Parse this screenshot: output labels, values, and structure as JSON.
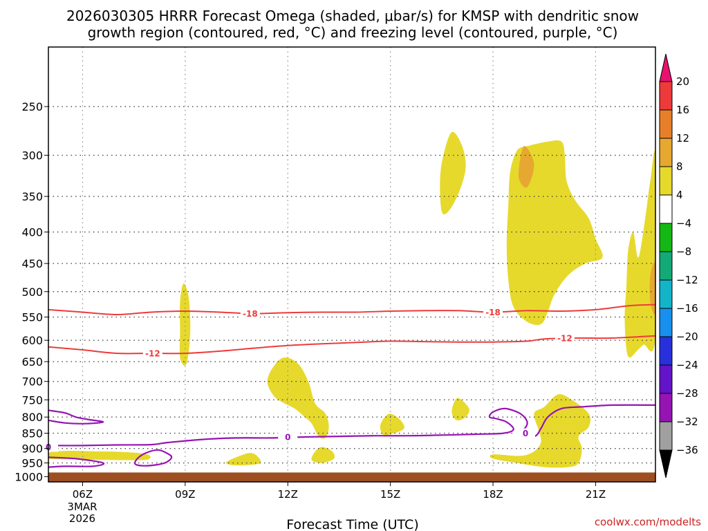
{
  "chart_data": {
    "type": "heatmap",
    "title_line1": "2026030305 HRRR Forecast Omega (shaded, μbar/s) for KMSP with dendritic snow",
    "title_line2": "growth region (contoured, red, °C) and freezing level (contoured, purple, °C)",
    "xlabel": "Forecast Time (UTC)",
    "ylabel": "",
    "x_ticks": [
      "06Z",
      "09Z",
      "12Z",
      "15Z",
      "18Z",
      "21Z"
    ],
    "x_date_label": [
      "3MAR",
      "2026"
    ],
    "xlim": [
      5,
      22.75
    ],
    "y_ticks": [
      250,
      300,
      350,
      400,
      450,
      500,
      550,
      600,
      650,
      700,
      750,
      800,
      850,
      900,
      950,
      1000
    ],
    "ylim": [
      200,
      1020
    ],
    "y_scale": "log",
    "y_inverted": true,
    "grid": true,
    "omega_regions": [
      {
        "level": "4",
        "points": [
          [
            16.5,
            370
          ],
          [
            16.45,
            330
          ],
          [
            16.55,
            300
          ],
          [
            16.8,
            275
          ],
          [
            17.1,
            290
          ],
          [
            17.2,
            315
          ],
          [
            17.0,
            345
          ],
          [
            16.7,
            370
          ]
        ]
      },
      {
        "level": "4",
        "points": [
          [
            19.0,
            290
          ],
          [
            19.6,
            285
          ],
          [
            20.0,
            285
          ],
          [
            20.1,
            300
          ],
          [
            20.15,
            330
          ],
          [
            20.4,
            355
          ],
          [
            20.8,
            380
          ],
          [
            21.0,
            410
          ],
          [
            21.2,
            440
          ],
          [
            20.7,
            450
          ],
          [
            20.2,
            470
          ],
          [
            19.8,
            505
          ],
          [
            19.6,
            540
          ],
          [
            19.4,
            565
          ],
          [
            19.0,
            560
          ],
          [
            18.6,
            530
          ],
          [
            18.45,
            480
          ],
          [
            18.4,
            420
          ],
          [
            18.45,
            360
          ],
          [
            18.5,
            320
          ],
          [
            18.7,
            295
          ]
        ]
      },
      {
        "level": "4",
        "points": [
          [
            21.85,
            550
          ],
          [
            21.9,
            490
          ],
          [
            21.95,
            430
          ],
          [
            22.1,
            400
          ],
          [
            22.25,
            440
          ],
          [
            22.45,
            380
          ],
          [
            22.6,
            330
          ],
          [
            22.75,
            305
          ],
          [
            22.75,
            590
          ],
          [
            22.4,
            610
          ],
          [
            22.2,
            625
          ],
          [
            22.0,
            640
          ],
          [
            21.9,
            620
          ]
        ]
      },
      {
        "level": "4",
        "points": [
          [
            8.85,
            640
          ],
          [
            8.85,
            580
          ],
          [
            8.85,
            520
          ],
          [
            8.95,
            485
          ],
          [
            9.1,
            510
          ],
          [
            9.15,
            570
          ],
          [
            9.1,
            630
          ],
          [
            9.0,
            660
          ]
        ]
      },
      {
        "level": "4",
        "points": [
          [
            11.4,
            700
          ],
          [
            11.6,
            660
          ],
          [
            11.9,
            640
          ],
          [
            12.3,
            655
          ],
          [
            12.6,
            700
          ],
          [
            12.8,
            760
          ],
          [
            13.1,
            790
          ],
          [
            13.2,
            830
          ],
          [
            13.1,
            865
          ],
          [
            12.9,
            860
          ],
          [
            12.7,
            820
          ],
          [
            12.5,
            800
          ],
          [
            12.2,
            775
          ],
          [
            11.9,
            760
          ],
          [
            11.6,
            740
          ]
        ]
      },
      {
        "level": "4",
        "points": [
          [
            14.7,
            830
          ],
          [
            14.8,
            805
          ],
          [
            15.0,
            790
          ],
          [
            15.3,
            810
          ],
          [
            15.4,
            835
          ],
          [
            15.1,
            850
          ],
          [
            14.8,
            855
          ]
        ]
      },
      {
        "level": "4",
        "points": [
          [
            16.8,
            790
          ],
          [
            16.85,
            760
          ],
          [
            17.0,
            745
          ],
          [
            17.3,
            775
          ],
          [
            17.2,
            800
          ],
          [
            16.95,
            810
          ]
        ]
      },
      {
        "level": "4",
        "points": [
          [
            19.2,
            790
          ],
          [
            19.5,
            770
          ],
          [
            19.9,
            735
          ],
          [
            20.3,
            750
          ],
          [
            20.8,
            790
          ],
          [
            20.8,
            830
          ],
          [
            20.5,
            860
          ],
          [
            20.6,
            900
          ],
          [
            20.5,
            950
          ],
          [
            20.2,
            965
          ],
          [
            19.5,
            965
          ],
          [
            18.7,
            950
          ],
          [
            18.0,
            935
          ],
          [
            18.0,
            920
          ],
          [
            18.8,
            925
          ],
          [
            19.2,
            910
          ],
          [
            19.4,
            880
          ],
          [
            19.35,
            845
          ]
        ]
      },
      {
        "level": "4",
        "points": [
          [
            5.0,
            915
          ],
          [
            5.5,
            908
          ],
          [
            6.5,
            910
          ],
          [
            7.2,
            912
          ],
          [
            7.9,
            920
          ],
          [
            7.9,
            938
          ],
          [
            7.2,
            940
          ],
          [
            6.0,
            938
          ],
          [
            5.0,
            935
          ]
        ]
      },
      {
        "level": "4",
        "points": [
          [
            10.2,
            948
          ],
          [
            10.6,
            925
          ],
          [
            10.9,
            915
          ],
          [
            11.1,
            925
          ],
          [
            11.2,
            950
          ],
          [
            10.8,
            958
          ],
          [
            10.4,
            958
          ]
        ]
      },
      {
        "level": "4",
        "points": [
          [
            12.7,
            940
          ],
          [
            12.8,
            910
          ],
          [
            13.0,
            895
          ],
          [
            13.3,
            910
          ],
          [
            13.35,
            935
          ],
          [
            13.0,
            950
          ]
        ]
      },
      {
        "level": "8",
        "points": [
          [
            18.75,
            325
          ],
          [
            18.9,
            290
          ],
          [
            19.2,
            310
          ],
          [
            19.0,
            338
          ]
        ]
      },
      {
        "level": "8",
        "points": [
          [
            22.6,
            470
          ],
          [
            22.75,
            450
          ],
          [
            22.75,
            540
          ],
          [
            22.6,
            520
          ]
        ]
      }
    ],
    "ground_level": 1000,
    "contours_dendritic": [
      {
        "label": "-18",
        "label_at": [
          10.9,
          543
        ],
        "points": [
          [
            5,
            535
          ],
          [
            6,
            540
          ],
          [
            7,
            545
          ],
          [
            8,
            540
          ],
          [
            9,
            538
          ],
          [
            10,
            540
          ],
          [
            11,
            543
          ],
          [
            12,
            541
          ],
          [
            13,
            540
          ],
          [
            14,
            540
          ],
          [
            15,
            538
          ],
          [
            16,
            537
          ],
          [
            17,
            537
          ],
          [
            18,
            540
          ],
          [
            19,
            537
          ],
          [
            20,
            538
          ],
          [
            21,
            535
          ],
          [
            22,
            527
          ],
          [
            22.75,
            525
          ]
        ]
      },
      {
        "label": "-12",
        "label_at": [
          8.05,
          630
        ],
        "label2": "-12",
        "label2_at": [
          20.1,
          595
        ],
        "points": [
          [
            5,
            615
          ],
          [
            6,
            622
          ],
          [
            7,
            630
          ],
          [
            8,
            630
          ],
          [
            9,
            630
          ],
          [
            10,
            625
          ],
          [
            11,
            618
          ],
          [
            12,
            612
          ],
          [
            13,
            608
          ],
          [
            14,
            605
          ],
          [
            15,
            602
          ],
          [
            16,
            603
          ],
          [
            17,
            604
          ],
          [
            18,
            604
          ],
          [
            19,
            602
          ],
          [
            19.5,
            597
          ],
          [
            20.5,
            595
          ],
          [
            21.5,
            595
          ],
          [
            22.75,
            590
          ]
        ]
      }
    ],
    "contours_freezing": [
      {
        "label": "0",
        "label_at": [
          5.0,
          895
        ],
        "points": [
          [
            5,
            890
          ],
          [
            6,
            890
          ],
          [
            7,
            888
          ],
          [
            8,
            887
          ],
          [
            8.5,
            880
          ],
          [
            9.5,
            870
          ],
          [
            10.5,
            865
          ],
          [
            11.5,
            865
          ],
          [
            12.5,
            862
          ],
          [
            13.5,
            860
          ],
          [
            14.5,
            858
          ],
          [
            15.5,
            858
          ],
          [
            16.5,
            856
          ],
          [
            17.5,
            853
          ],
          [
            18.3,
            850
          ],
          [
            18.6,
            838
          ],
          [
            18.4,
            815
          ],
          [
            18.1,
            805
          ],
          [
            17.9,
            800
          ],
          [
            18.0,
            785
          ],
          [
            18.35,
            775
          ],
          [
            18.8,
            790
          ],
          [
            19.0,
            815
          ],
          [
            18.9,
            838
          ],
          [
            18.7,
            848
          ],
          [
            19.2,
            860
          ],
          [
            19.4,
            835
          ],
          [
            19.6,
            800
          ],
          [
            20.0,
            775
          ],
          [
            20.6,
            770
          ],
          [
            21.5,
            765
          ],
          [
            22.75,
            765
          ]
        ]
      },
      {
        "label": "0",
        "label_at": [
          12.0,
          862
        ],
        "points": []
      },
      {
        "label": "0",
        "label_at": [
          18.95,
          850
        ],
        "points": []
      },
      {
        "label": "",
        "label_at": null,
        "points": [
          [
            5,
            780
          ],
          [
            5.5,
            788
          ],
          [
            5.8,
            800
          ],
          [
            6.2,
            808
          ],
          [
            6.6,
            815
          ],
          [
            6.1,
            820
          ],
          [
            5.5,
            818
          ],
          [
            5.0,
            810
          ]
        ]
      },
      {
        "label": "",
        "label_at": null,
        "points": [
          [
            5,
            930
          ],
          [
            5.8,
            935
          ],
          [
            6.6,
            950
          ],
          [
            6.3,
            962
          ],
          [
            5.5,
            962
          ],
          [
            5.0,
            965
          ]
        ]
      },
      {
        "label": "",
        "label_at": null,
        "points": [
          [
            7.55,
            955
          ],
          [
            7.6,
            935
          ],
          [
            7.85,
            915
          ],
          [
            8.2,
            905
          ],
          [
            8.45,
            915
          ],
          [
            8.6,
            930
          ],
          [
            8.4,
            950
          ],
          [
            7.9,
            960
          ]
        ]
      }
    ],
    "colorbar": {
      "labels": [
        "20",
        "16",
        "12",
        "8",
        "4",
        "−4",
        "−8",
        "−12",
        "−16",
        "−20",
        "−24",
        "−28",
        "−32",
        "−36"
      ],
      "colors": [
        "#e8116f",
        "#ee3a3a",
        "#e77f2a",
        "#e6a830",
        "#e6d92c",
        "#ffffff",
        "#14b814",
        "#14aa78",
        "#14b4c8",
        "#1890ee",
        "#2830dc",
        "#6414c8",
        "#9614b4",
        "#a0a0a0",
        "#000000"
      ]
    },
    "colors": {
      "omega_4": "#e6d92c",
      "omega_8": "#e6a830",
      "ground": "#9e4f22",
      "dendritic_line": "#ee3a3a",
      "freezing_line": "#9614b4"
    }
  },
  "credit": "coolwx.com/modelts"
}
